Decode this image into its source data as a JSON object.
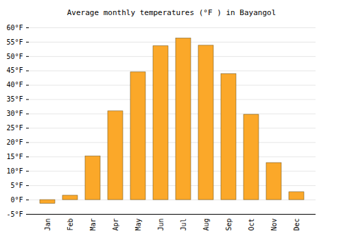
{
  "chart_data": {
    "type": "bar",
    "title": "Average monthly temperatures (°F ) in Bayangol",
    "categories": [
      "Jan",
      "Feb",
      "Mar",
      "Apr",
      "May",
      "Jun",
      "Jul",
      "Aug",
      "Sep",
      "Oct",
      "Nov",
      "Dec"
    ],
    "values": [
      -1.3,
      1.5,
      15.2,
      30.9,
      44.5,
      53.6,
      56.3,
      53.8,
      43.9,
      29.7,
      12.9,
      2.7
    ],
    "color": "#fba829",
    "ylim": [
      -5,
      60
    ],
    "yticks": [
      {
        "value": -5,
        "label": "-5°F"
      },
      {
        "value": 0,
        "label": "0°F"
      },
      {
        "value": 5,
        "label": "5°F"
      },
      {
        "value": 10,
        "label": "10°F"
      },
      {
        "value": 15,
        "label": "15°F"
      },
      {
        "value": 20,
        "label": "20°F"
      },
      {
        "value": 25,
        "label": "25°F"
      },
      {
        "value": 30,
        "label": "30°F"
      },
      {
        "value": 35,
        "label": "35°F"
      },
      {
        "value": 40,
        "label": "40°F"
      },
      {
        "value": 45,
        "label": "45°F"
      },
      {
        "value": 50,
        "label": "50°F"
      },
      {
        "value": 55,
        "label": "55°F"
      },
      {
        "value": 60,
        "label": "60°F"
      }
    ],
    "grid": true
  }
}
